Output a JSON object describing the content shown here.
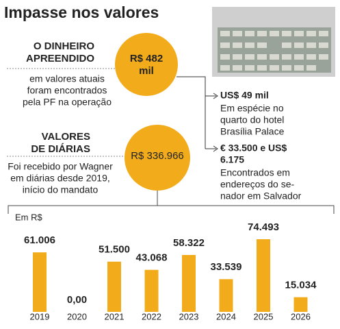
{
  "title": "Impasse nos valores",
  "seized": {
    "heading": [
      "O DINHEIRO",
      "APREENDIDO"
    ],
    "text": [
      "em valores atuais",
      "foram encontrados",
      "pela PF na operação"
    ],
    "amount": [
      "R$ 482",
      "mil"
    ]
  },
  "allowances": {
    "heading": [
      "VALORES",
      "DE DIÁRIAS"
    ],
    "text": [
      "Foi recebido por Wagner",
      "em diárias desde 2019,",
      "início do mandato"
    ],
    "amount": "R$ 336.966"
  },
  "details": [
    {
      "amount": [
        "US$ 49 mil"
      ],
      "text": [
        "Em espécie no",
        "quarto do hotel",
        "Brasília Palace"
      ]
    },
    {
      "amount": [
        "€ 33.500 e US$",
        "6.175"
      ],
      "text": [
        "Encontrados em",
        "endereços do se-",
        "nador em Salvador"
      ]
    }
  ],
  "chart_data": {
    "type": "bar",
    "unit_label": "Em R$",
    "color": "#f2ac1b",
    "categories": [
      "2019",
      "2020",
      "2021",
      "2022",
      "2023",
      "2024",
      "2025",
      "2026"
    ],
    "values": [
      61006,
      0,
      51500,
      43068,
      58322,
      33539,
      74493,
      15034
    ],
    "value_labels": [
      "61.006",
      "0,00",
      "51.500",
      "43.068",
      "58.322",
      "33.539",
      "74.493",
      "15.034"
    ]
  }
}
